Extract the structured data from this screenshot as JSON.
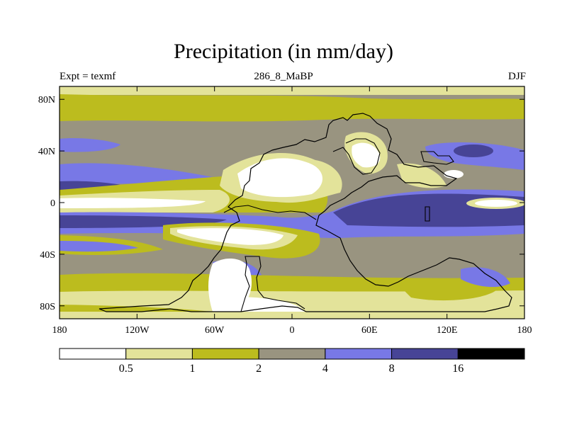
{
  "title": "Precipitation (in mm/day)",
  "subtitle_left": "Expt = texmf",
  "subtitle_center": "286_8_MaBP",
  "subtitle_right": "DJF",
  "axes": {
    "lat_labels": [
      {
        "value": 80,
        "label": "80N"
      },
      {
        "value": 40,
        "label": "40N"
      },
      {
        "value": 0,
        "label": "0"
      },
      {
        "value": -40,
        "label": "40S"
      },
      {
        "value": -80,
        "label": "80S"
      }
    ],
    "lon_labels": [
      {
        "value": -180,
        "label": "180"
      },
      {
        "value": -120,
        "label": "120W"
      },
      {
        "value": -60,
        "label": "60W"
      },
      {
        "value": 0,
        "label": "0"
      },
      {
        "value": 60,
        "label": "60E"
      },
      {
        "value": 120,
        "label": "120E"
      },
      {
        "value": 180,
        "label": "180"
      }
    ]
  },
  "colorbar": {
    "colors": [
      "#ffffff",
      "#e3e39a",
      "#bcbc1e",
      "#999480",
      "#7878e6",
      "#474496",
      "#000000"
    ],
    "labels": [
      "0.5",
      "1",
      "2",
      "4",
      "8",
      "16"
    ]
  }
}
